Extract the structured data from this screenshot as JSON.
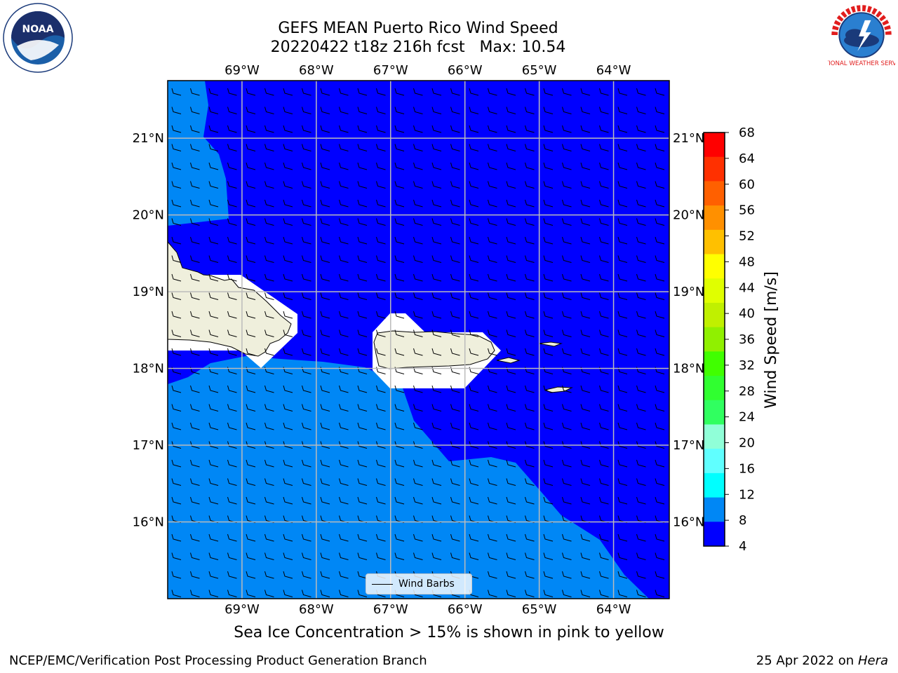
{
  "title": {
    "line1": "GEFS MEAN Puerto Rico Wind Speed",
    "line2": "20220422 t18z 216h fcst   Max: 10.54"
  },
  "map": {
    "lon_labels": [
      "69°W",
      "68°W",
      "67°W",
      "66°W",
      "65°W",
      "64°W"
    ],
    "lat_labels": [
      "21°N",
      "20°N",
      "19°N",
      "18°N",
      "17°N",
      "16°N"
    ],
    "lon_values": [
      -69,
      -68,
      -67,
      -66,
      -65,
      -64
    ],
    "lat_values": [
      21,
      20,
      19,
      18,
      17,
      16
    ],
    "lon_range": [
      -70,
      -63.25
    ],
    "lat_range": [
      15,
      21.75
    ],
    "colors": {
      "band_4_8": "#0000ff",
      "band_8_12": "#0087f5",
      "land": "#efefdc",
      "mask": "#ffffff",
      "grid": "#bbbbbb"
    },
    "legend_label": "Wind Barbs"
  },
  "colorbar": {
    "label": "Wind Speed [m/s]",
    "ticks": [
      "68",
      "64",
      "60",
      "56",
      "52",
      "48",
      "44",
      "40",
      "36",
      "32",
      "28",
      "24",
      "20",
      "16",
      "12",
      "8",
      "4"
    ],
    "colors": [
      "#ff0000",
      "#ff3000",
      "#ff6000",
      "#ff9000",
      "#ffc000",
      "#ffff00",
      "#e0ff00",
      "#c0f000",
      "#90f000",
      "#40ff00",
      "#30ff30",
      "#30ff60",
      "#90ffd8",
      "#60ffff",
      "#00ffff",
      "#0087f5",
      "#0000ff"
    ]
  },
  "footer": {
    "note": "Sea Ice Concentration > 15% is shown in pink to yellow",
    "branch": "NCEP/EMC/Verification Post Processing Product Generation Branch",
    "date": "25 Apr 2022 on",
    "machine": "Hera"
  },
  "logos": {
    "noaa_text": "NOAA",
    "nws_text": "NATIONAL WEATHER SERVICE"
  }
}
